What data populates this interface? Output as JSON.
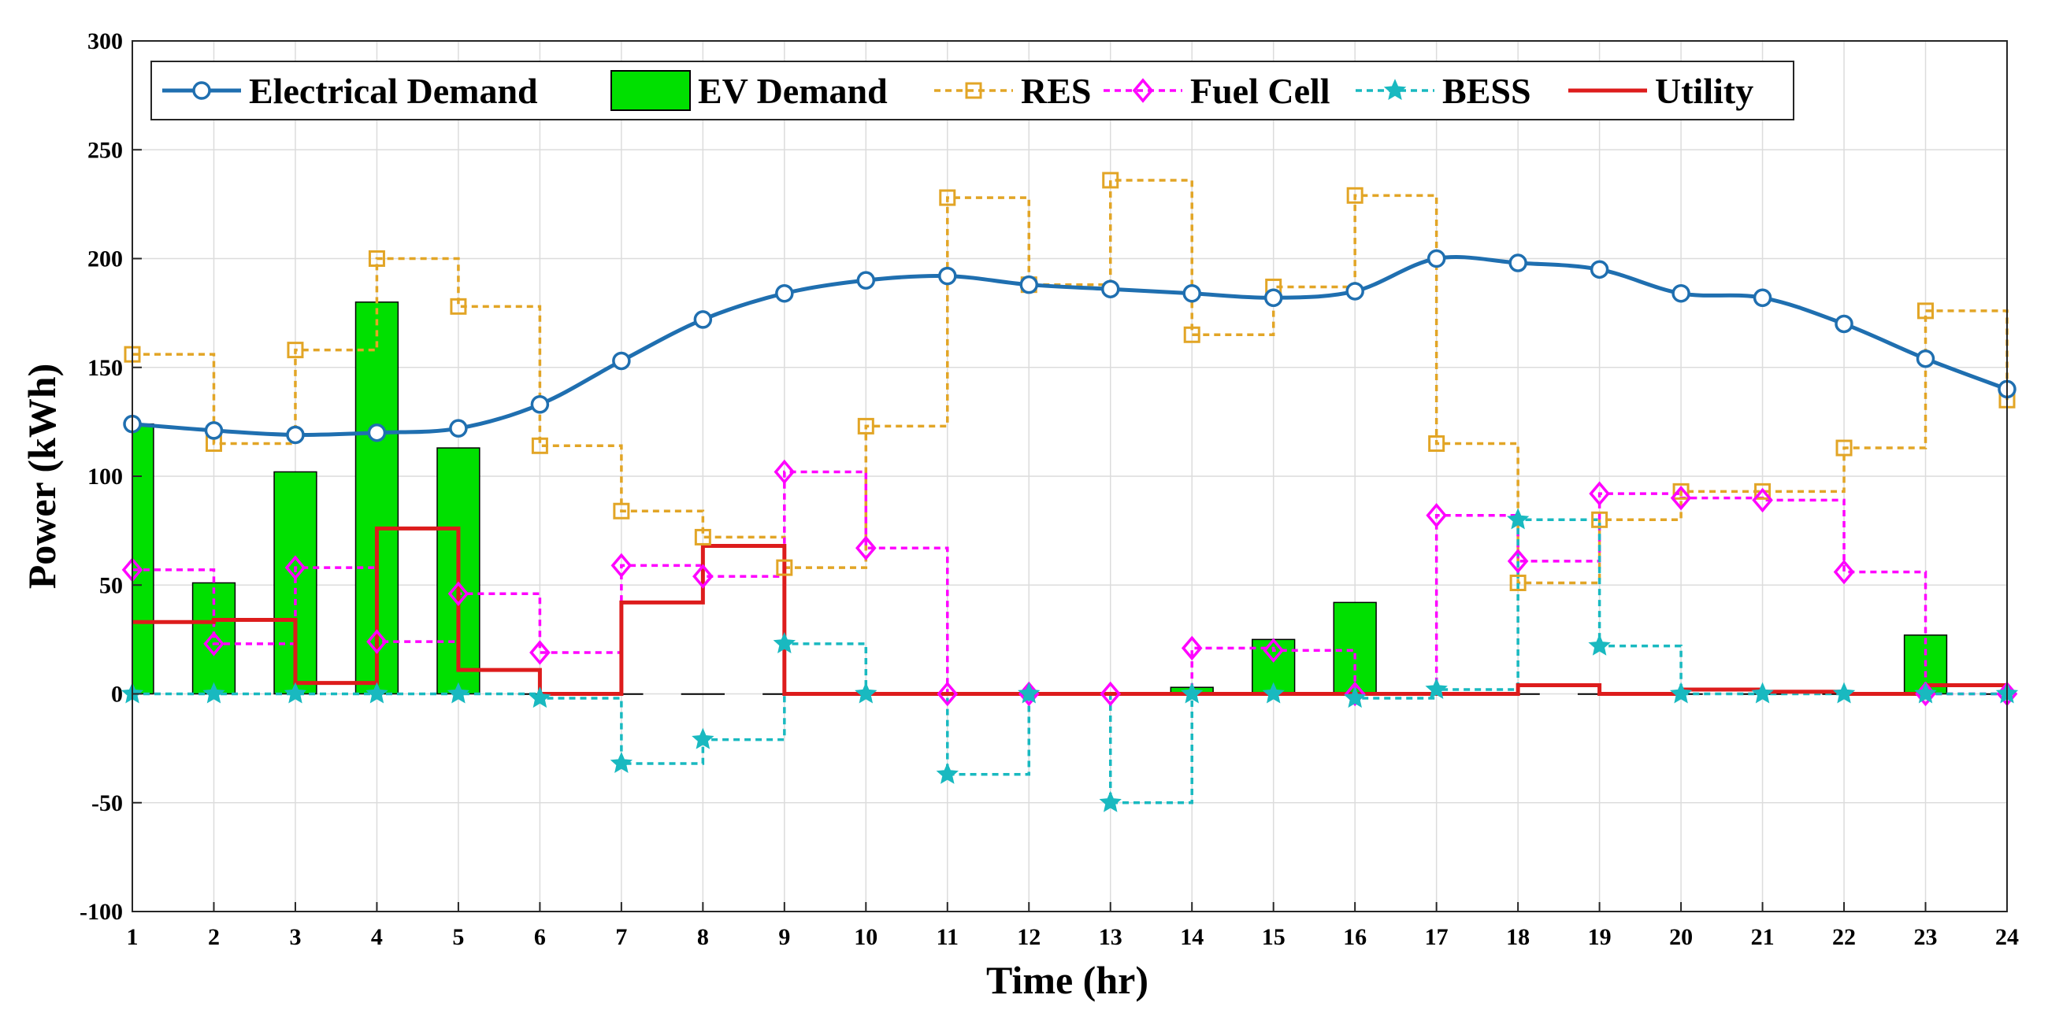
{
  "chart_data": {
    "type": "line",
    "title": "",
    "xlabel": "Time (hr)",
    "ylabel": "Power (kWh)",
    "xlim": [
      1,
      24
    ],
    "ylim": [
      -100,
      300
    ],
    "x": [
      1,
      2,
      3,
      4,
      5,
      6,
      7,
      8,
      9,
      10,
      11,
      12,
      13,
      14,
      15,
      16,
      17,
      18,
      19,
      20,
      21,
      22,
      23,
      24
    ],
    "xticks": [
      "1",
      "2",
      "3",
      "4",
      "5",
      "6",
      "7",
      "8",
      "9",
      "10",
      "11",
      "12",
      "13",
      "14",
      "15",
      "16",
      "17",
      "18",
      "19",
      "20",
      "21",
      "22",
      "23",
      "24"
    ],
    "yticks": [
      "-100",
      "-50",
      "0",
      "50",
      "100",
      "150",
      "200",
      "250",
      "300"
    ],
    "grid": true,
    "legend_position": "top-left",
    "series": [
      {
        "name": "Electrical Demand",
        "style": "line-circle",
        "color": "#1f6fb0",
        "values": [
          124,
          121,
          119,
          120,
          122,
          133,
          153,
          172,
          184,
          190,
          192,
          188,
          186,
          184,
          182,
          185,
          200,
          198,
          195,
          184,
          182,
          170,
          154,
          140
        ]
      },
      {
        "name": "EV Demand",
        "style": "bar",
        "color": "#00e000",
        "values": [
          124,
          51,
          102,
          180,
          113,
          0,
          0,
          0,
          0,
          0,
          0,
          0,
          0,
          3,
          25,
          42,
          0,
          0,
          0,
          0,
          0,
          0,
          27,
          0
        ]
      },
      {
        "name": "RES",
        "style": "stairs-square-dashed",
        "color": "#e2a526",
        "values": [
          156,
          115,
          158,
          200,
          178,
          114,
          84,
          72,
          58,
          123,
          228,
          188,
          236,
          165,
          187,
          229,
          115,
          51,
          80,
          93,
          93,
          113,
          176,
          135
        ]
      },
      {
        "name": "Fuel Cell",
        "style": "stairs-diamond-dashed",
        "color": "#ff00ff",
        "values": [
          57,
          23,
          58,
          24,
          46,
          19,
          59,
          54,
          102,
          67,
          0,
          0,
          0,
          21,
          20,
          0,
          82,
          61,
          92,
          90,
          89,
          56,
          0,
          0
        ]
      },
      {
        "name": "BESS",
        "style": "stairs-star-dashed",
        "color": "#19b9c0",
        "values": [
          0,
          0,
          0,
          0,
          0,
          -2,
          -32,
          -21,
          23,
          0,
          -37,
          0,
          -50,
          0,
          0,
          -2,
          2,
          80,
          22,
          0,
          0,
          0,
          0,
          0
        ]
      },
      {
        "name": "Utility",
        "style": "stairs",
        "color": "#dd1c1c",
        "values": [
          33,
          34,
          5,
          76,
          11,
          0,
          42,
          68,
          0,
          0,
          0,
          0,
          0,
          0,
          0,
          0,
          0,
          4,
          0,
          2,
          1,
          0,
          4,
          4
        ]
      }
    ]
  }
}
